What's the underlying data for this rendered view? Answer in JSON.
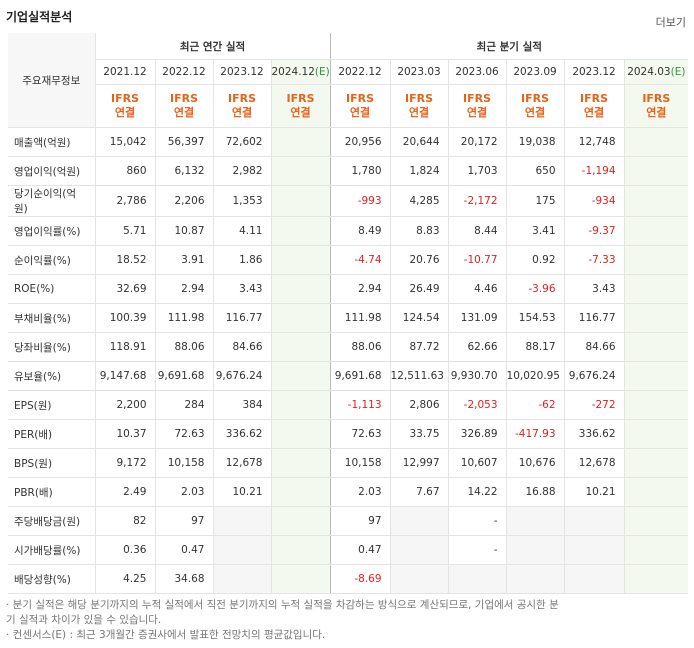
{
  "header": {
    "title": "기업실적분석",
    "more": "더보기"
  },
  "table": {
    "row_header": "주요재무정보",
    "groups": [
      {
        "label": "최근 연간 실적",
        "span": 4
      },
      {
        "label": "최근 분기 실적",
        "span": 6
      }
    ],
    "periods": [
      {
        "period": "2021.12"
      },
      {
        "period": "2022.12"
      },
      {
        "period": "2023.12"
      },
      {
        "period": "2024.12",
        "mark": "(E)"
      },
      {
        "period": "2022.12"
      },
      {
        "period": "2023.03"
      },
      {
        "period": "2023.06"
      },
      {
        "period": "2023.09"
      },
      {
        "period": "2023.12"
      },
      {
        "period": "2024.03",
        "mark": "(E)"
      }
    ],
    "basis": [
      [
        "IFRS",
        "연결"
      ],
      [
        "IFRS",
        "연결"
      ],
      [
        "IFRS",
        "연결"
      ],
      [
        "IFRS",
        "연결"
      ],
      [
        "IFRS",
        "연결"
      ],
      [
        "IFRS",
        "연결"
      ],
      [
        "IFRS",
        "연결"
      ],
      [
        "IFRS",
        "연결"
      ],
      [
        "IFRS",
        "연결"
      ],
      [
        "IFRS",
        "연결"
      ]
    ],
    "row_groups": [
      [
        {
          "label": "매출액(억원)",
          "cells": [
            "15,042",
            "56,397",
            "72,602",
            null,
            "20,956",
            "20,644",
            "20,172",
            "19,038",
            "12,748",
            null
          ]
        },
        {
          "label": "영업이익(억원)",
          "cells": [
            "860",
            "6,132",
            "2,982",
            null,
            "1,780",
            "1,824",
            "1,703",
            "650",
            "-1,194",
            null
          ]
        },
        {
          "label": "당기순이익(억원)",
          "cells": [
            "2,786",
            "2,206",
            "1,353",
            null,
            "-993",
            "4,285",
            "-2,172",
            "175",
            "-934",
            null
          ]
        }
      ],
      [
        {
          "label": "영업이익률(%)",
          "cells": [
            "5.71",
            "10.87",
            "4.11",
            null,
            "8.49",
            "8.83",
            "8.44",
            "3.41",
            "-9.37",
            null
          ]
        },
        {
          "label": "순이익률(%)",
          "cells": [
            "18.52",
            "3.91",
            "1.86",
            null,
            "-4.74",
            "20.76",
            "-10.77",
            "0.92",
            "-7.33",
            null
          ]
        },
        {
          "label": "ROE(%)",
          "cells": [
            "32.69",
            "2.94",
            "3.43",
            null,
            "2.94",
            "26.49",
            "4.46",
            "-3.96",
            "3.43",
            null
          ]
        }
      ],
      [
        {
          "label": "부채비율(%)",
          "cells": [
            "100.39",
            "111.98",
            "116.77",
            null,
            "111.98",
            "124.54",
            "131.09",
            "154.53",
            "116.77",
            null
          ]
        },
        {
          "label": "당좌비율(%)",
          "cells": [
            "118.91",
            "88.06",
            "84.66",
            null,
            "88.06",
            "87.72",
            "62.66",
            "88.17",
            "84.66",
            null
          ]
        },
        {
          "label": "유보율(%)",
          "cells": [
            "9,147.68",
            "9,691.68",
            "9,676.24",
            null,
            "9,691.68",
            "12,511.63",
            "9,930.70",
            "10,020.95",
            "9,676.24",
            null
          ]
        }
      ],
      [
        {
          "label": "EPS(원)",
          "cells": [
            "2,200",
            "284",
            "384",
            null,
            "-1,113",
            "2,806",
            "-2,053",
            "-62",
            "-272",
            null
          ]
        },
        {
          "label": "PER(배)",
          "cells": [
            "10.37",
            "72.63",
            "336.62",
            null,
            "72.63",
            "33.75",
            "326.89",
            "-417.93",
            "336.62",
            null
          ]
        },
        {
          "label": "BPS(원)",
          "cells": [
            "9,172",
            "10,158",
            "12,678",
            null,
            "10,158",
            "12,997",
            "10,607",
            "10,676",
            "12,678",
            null
          ]
        },
        {
          "label": "PBR(배)",
          "cells": [
            "2.49",
            "2.03",
            "10.21",
            null,
            "2.03",
            "7.67",
            "14.22",
            "16.88",
            "10.21",
            null
          ]
        }
      ],
      [
        {
          "label": "주당배당금(원)",
          "cells": [
            "82",
            "97",
            null,
            null,
            "97",
            null,
            "-",
            null,
            null,
            null
          ]
        },
        {
          "label": "시가배당률(%)",
          "cells": [
            "0.36",
            "0.47",
            null,
            null,
            "0.47",
            null,
            "-",
            null,
            null,
            null
          ]
        },
        {
          "label": "배당성향(%)",
          "cells": [
            "4.25",
            "34.68",
            null,
            null,
            "-8.69",
            null,
            null,
            null,
            null,
            null
          ]
        }
      ]
    ]
  },
  "notes": [
    "분기 실적은 해당 분기까지의 누적 실적에서 직전 분기까지의 누적 실적을 차감하는 방식으로 계산되므로, 기업에서 공시한 분기 실적과 차이가 있을 수 있습니다.",
    "컨센서스(E) : 최근 3개월간 증권사에서 발표한 전망치의 평균값입니다."
  ]
}
